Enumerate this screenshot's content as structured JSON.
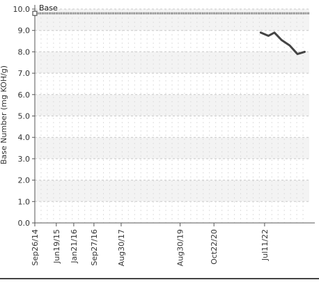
{
  "chart_data": {
    "type": "line",
    "ylabel": "Base Number (mg KOH/g)",
    "ylim": [
      0,
      10
    ],
    "yticks": [
      "0.0",
      "1.0",
      "2.0",
      "3.0",
      "4.0",
      "5.0",
      "6.0",
      "7.0",
      "8.0",
      "9.0",
      "10.0"
    ],
    "xlim": [
      "2014-09-26",
      "2024-01-15"
    ],
    "xticks": [
      {
        "label": "Sep26/14",
        "date": "2014-09-26"
      },
      {
        "label": "Jun19/15",
        "date": "2015-06-19"
      },
      {
        "label": "Jan21/16",
        "date": "2016-01-21"
      },
      {
        "label": "Sep27/16",
        "date": "2016-09-27"
      },
      {
        "label": "Aug30/17",
        "date": "2017-08-30"
      },
      {
        "label": "Aug30/19",
        "date": "2019-08-30"
      },
      {
        "label": "Oct22/20",
        "date": "2020-10-22"
      },
      {
        "label": "Jul11/22",
        "date": "2022-07-11"
      }
    ],
    "grid": true,
    "series": [
      {
        "name": "Base",
        "color": "#777777",
        "style": "dotted",
        "x": [
          "2014-09-26",
          "2024-01-15"
        ],
        "y": [
          9.8,
          9.8
        ]
      },
      {
        "name": "",
        "color": "#444444",
        "style": "solid",
        "x": [
          "2022-05-24",
          "2022-08-27",
          "2022-11-10",
          "2023-02-07",
          "2023-05-18",
          "2023-08-21",
          "2023-11-19"
        ],
        "y": [
          8.9,
          8.75,
          8.9,
          8.55,
          8.3,
          7.9,
          8.0
        ]
      }
    ]
  }
}
